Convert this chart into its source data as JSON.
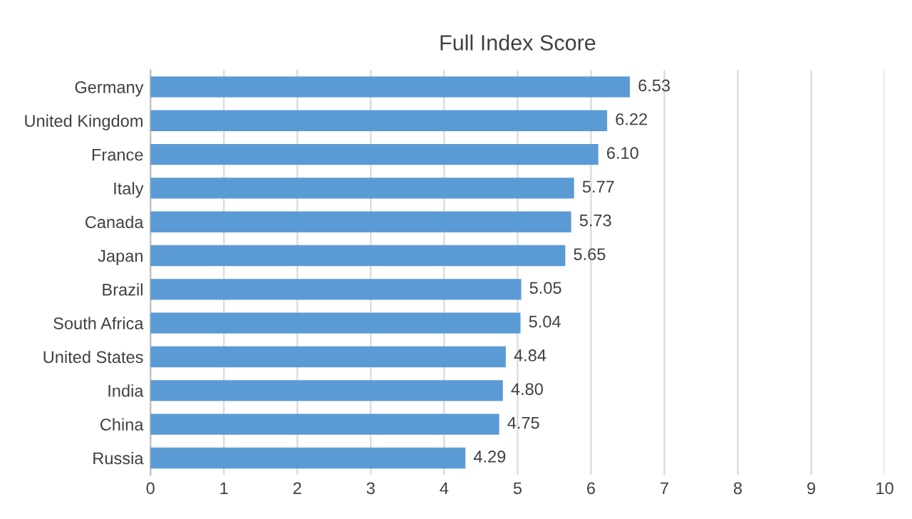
{
  "chart_data": {
    "type": "bar",
    "orientation": "horizontal",
    "title": "Full Index Score",
    "categories": [
      "Germany",
      "United Kingdom",
      "France",
      "Italy",
      "Canada",
      "Japan",
      "Brazil",
      "South Africa",
      "United States",
      "India",
      "China",
      "Russia"
    ],
    "values": [
      6.53,
      6.22,
      6.1,
      5.77,
      5.73,
      5.65,
      5.05,
      5.04,
      4.84,
      4.8,
      4.75,
      4.29
    ],
    "value_labels": [
      "6.53",
      "6.22",
      "6.10",
      "5.77",
      "5.73",
      "5.65",
      "5.05",
      "5.04",
      "4.84",
      "4.80",
      "4.75",
      "4.29"
    ],
    "color": "#5b9bd5",
    "xlim": [
      0,
      10
    ],
    "xticks": [
      0,
      1,
      2,
      3,
      4,
      5,
      6,
      7,
      8,
      9,
      10
    ],
    "grid": "x",
    "legend": false
  }
}
